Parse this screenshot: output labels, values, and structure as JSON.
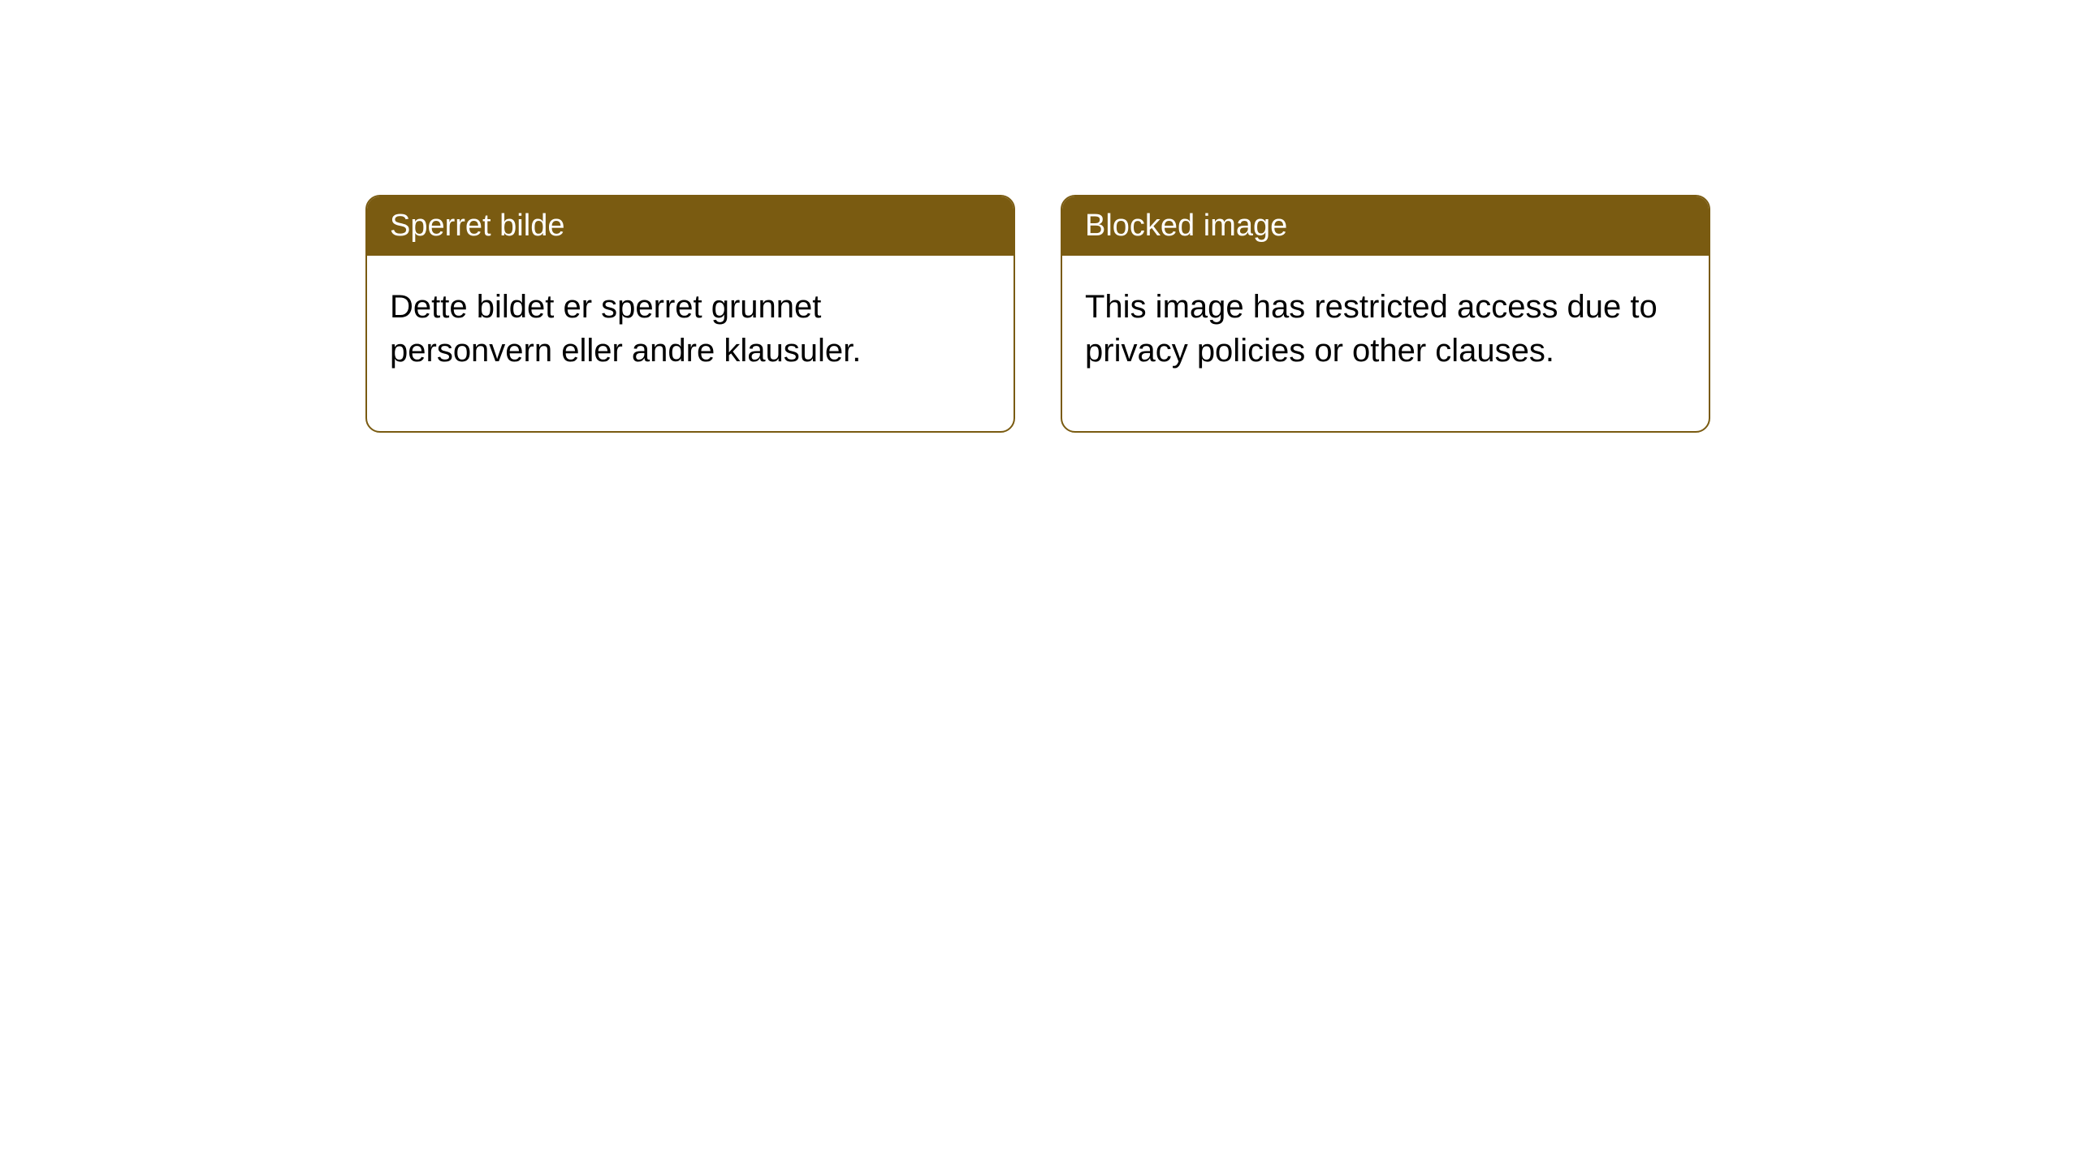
{
  "page": {
    "background_color": "#ffffff"
  },
  "notices": {
    "card_border_color": "#7a5b11",
    "header_bg_color": "#7a5b11",
    "header_text_color": "#ffffff",
    "body_text_color": "#000000",
    "header_fontsize": 38,
    "body_fontsize": 40,
    "border_radius": 18,
    "left": {
      "title": "Sperret bilde",
      "body": "Dette bildet er sperret grunnet personvern eller andre klausuler."
    },
    "right": {
      "title": "Blocked image",
      "body": "This image has restricted access due to privacy policies or other clauses."
    }
  }
}
